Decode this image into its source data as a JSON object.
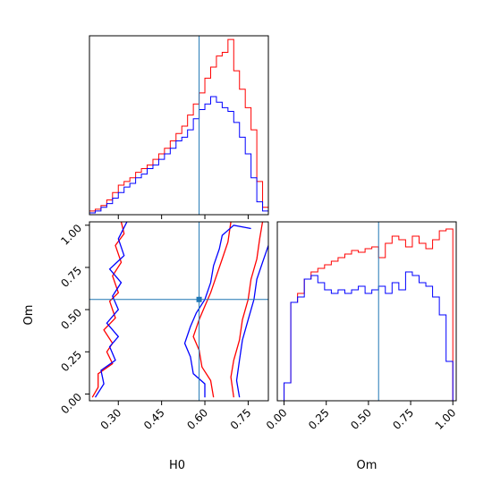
{
  "colors": {
    "series_1": "#ff0000",
    "series_2": "#0000ff",
    "truth": "#1f77b4",
    "frame": "#000000"
  },
  "chart_data": [
    {
      "type": "histogram",
      "panel": "H0 marginal",
      "xlim": [
        0.2,
        0.82
      ],
      "bin_start": 0.2,
      "bin_width": 0.02,
      "truth": 0.58,
      "ymax": 0.97,
      "series": [
        {
          "color": "red",
          "values": [
            0.02,
            0.03,
            0.05,
            0.08,
            0.12,
            0.16,
            0.18,
            0.2,
            0.23,
            0.25,
            0.27,
            0.3,
            0.33,
            0.36,
            0.4,
            0.44,
            0.48,
            0.54,
            0.6,
            0.66,
            0.74,
            0.8,
            0.86,
            0.88,
            0.95,
            0.78,
            0.68,
            0.58,
            0.46,
            0.18,
            0.04
          ]
        },
        {
          "color": "blue",
          "values": [
            0.01,
            0.02,
            0.04,
            0.06,
            0.09,
            0.12,
            0.15,
            0.17,
            0.2,
            0.22,
            0.25,
            0.27,
            0.3,
            0.33,
            0.36,
            0.4,
            0.42,
            0.46,
            0.52,
            0.57,
            0.6,
            0.64,
            0.61,
            0.58,
            0.56,
            0.5,
            0.42,
            0.33,
            0.2,
            0.07,
            0.02
          ]
        }
      ],
      "xticks": [
        0.3,
        0.45,
        0.6,
        0.75
      ]
    },
    {
      "type": "contour",
      "panel": "H0 vs Om",
      "xlabel": "H0",
      "ylabel": "Om",
      "xlim": [
        0.2,
        0.82
      ],
      "ylim": [
        -0.04,
        1.02
      ],
      "truth": {
        "x": 0.58,
        "y": 0.56
      },
      "xticks": [
        0.3,
        0.45,
        0.6,
        0.75
      ],
      "xtick_labels": [
        "0.30",
        "0.45",
        "0.60",
        "0.75"
      ],
      "yticks": [
        0.0,
        0.25,
        0.5,
        0.75,
        1.0
      ],
      "ytick_labels": [
        "0.00",
        "0.25",
        "0.50",
        "0.75",
        "1.00"
      ],
      "contours": [
        {
          "color": "red",
          "points": [
            [
              0.21,
              -0.02
            ],
            [
              0.23,
              0.04
            ],
            [
              0.23,
              0.12
            ],
            [
              0.28,
              0.18
            ],
            [
              0.26,
              0.25
            ],
            [
              0.28,
              0.3
            ],
            [
              0.25,
              0.38
            ],
            [
              0.29,
              0.45
            ],
            [
              0.27,
              0.55
            ],
            [
              0.3,
              0.6
            ],
            [
              0.28,
              0.7
            ],
            [
              0.31,
              0.78
            ],
            [
              0.29,
              0.88
            ],
            [
              0.32,
              0.95
            ],
            [
              0.31,
              1.02
            ]
          ]
        },
        {
          "color": "blue",
          "points": [
            [
              0.22,
              -0.02
            ],
            [
              0.25,
              0.06
            ],
            [
              0.24,
              0.14
            ],
            [
              0.29,
              0.2
            ],
            [
              0.27,
              0.28
            ],
            [
              0.3,
              0.34
            ],
            [
              0.26,
              0.42
            ],
            [
              0.3,
              0.5
            ],
            [
              0.28,
              0.58
            ],
            [
              0.31,
              0.66
            ],
            [
              0.27,
              0.74
            ],
            [
              0.32,
              0.82
            ],
            [
              0.3,
              0.92
            ],
            [
              0.33,
              1.02
            ]
          ]
        },
        {
          "color": "red",
          "points": [
            [
              0.63,
              -0.02
            ],
            [
              0.62,
              0.08
            ],
            [
              0.59,
              0.16
            ],
            [
              0.58,
              0.26
            ],
            [
              0.56,
              0.34
            ],
            [
              0.58,
              0.44
            ],
            [
              0.6,
              0.52
            ],
            [
              0.62,
              0.6
            ],
            [
              0.64,
              0.7
            ],
            [
              0.66,
              0.8
            ],
            [
              0.68,
              0.9
            ],
            [
              0.69,
              1.02
            ]
          ]
        },
        {
          "color": "red",
          "points": [
            [
              0.7,
              -0.02
            ],
            [
              0.69,
              0.1
            ],
            [
              0.7,
              0.2
            ],
            [
              0.72,
              0.32
            ],
            [
              0.73,
              0.44
            ],
            [
              0.75,
              0.56
            ],
            [
              0.76,
              0.68
            ],
            [
              0.78,
              0.8
            ],
            [
              0.79,
              0.92
            ],
            [
              0.8,
              1.02
            ]
          ]
        },
        {
          "color": "blue",
          "points": [
            [
              0.6,
              -0.02
            ],
            [
              0.6,
              0.06
            ],
            [
              0.56,
              0.12
            ],
            [
              0.55,
              0.22
            ],
            [
              0.53,
              0.3
            ],
            [
              0.55,
              0.4
            ],
            [
              0.57,
              0.48
            ],
            [
              0.6,
              0.56
            ],
            [
              0.62,
              0.66
            ],
            [
              0.63,
              0.76
            ],
            [
              0.65,
              0.86
            ],
            [
              0.66,
              0.94
            ],
            [
              0.7,
              1.0
            ],
            [
              0.76,
              0.98
            ]
          ]
        },
        {
          "color": "blue",
          "points": [
            [
              0.72,
              -0.02
            ],
            [
              0.71,
              0.08
            ],
            [
              0.72,
              0.2
            ],
            [
              0.73,
              0.32
            ],
            [
              0.75,
              0.44
            ],
            [
              0.77,
              0.56
            ],
            [
              0.78,
              0.68
            ],
            [
              0.8,
              0.78
            ],
            [
              0.82,
              0.88
            ]
          ]
        }
      ]
    },
    {
      "type": "histogram",
      "panel": "Om marginal",
      "xlabel": "Om",
      "xlim": [
        -0.04,
        1.02
      ],
      "bin_start": 0.0,
      "bin_width": 0.04,
      "truth": 0.56,
      "ymax": 1.0,
      "series": [
        {
          "color": "red",
          "values": [
            0.1,
            0.55,
            0.6,
            0.68,
            0.72,
            0.74,
            0.76,
            0.78,
            0.8,
            0.82,
            0.84,
            0.83,
            0.85,
            0.86,
            0.8,
            0.88,
            0.92,
            0.9,
            0.86,
            0.92,
            0.88,
            0.85,
            0.9,
            0.95,
            0.96
          ]
        },
        {
          "color": "blue",
          "values": [
            0.1,
            0.55,
            0.58,
            0.68,
            0.7,
            0.66,
            0.62,
            0.6,
            0.62,
            0.6,
            0.62,
            0.64,
            0.6,
            0.62,
            0.64,
            0.6,
            0.66,
            0.62,
            0.72,
            0.7,
            0.66,
            0.64,
            0.58,
            0.48,
            0.22
          ]
        }
      ],
      "xticks": [
        0.0,
        0.25,
        0.5,
        0.75,
        1.0
      ],
      "xtick_labels": [
        "0.00",
        "0.25",
        "0.50",
        "0.75",
        "1.00"
      ]
    }
  ]
}
